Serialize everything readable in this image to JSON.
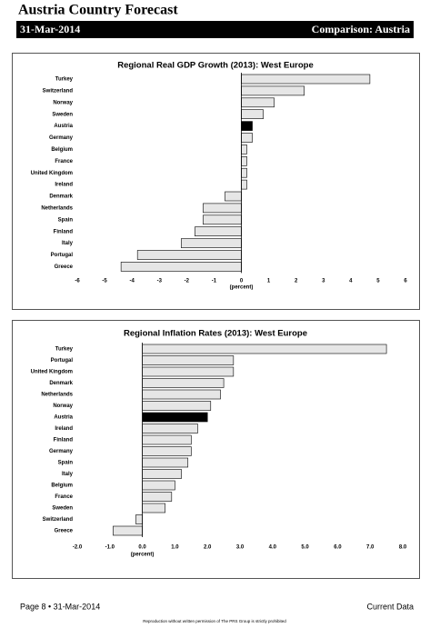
{
  "header": {
    "title": "Austria Country Forecast",
    "date": "31-Mar-2014",
    "comparison": "Comparison: Austria"
  },
  "chart_data": [
    {
      "type": "bar",
      "orientation": "horizontal",
      "title": "Regional Real GDP Growth (2013): West Europe",
      "categories": [
        "Turkey",
        "Switzerland",
        "Norway",
        "Sweden",
        "Austria",
        "Germany",
        "Belgium",
        "France",
        "United Kingdom",
        "Ireland",
        "Denmark",
        "Netherlands",
        "Spain",
        "Finland",
        "Italy",
        "Portugal",
        "Greece"
      ],
      "values": [
        4.7,
        2.3,
        1.2,
        0.8,
        0.4,
        0.4,
        0.2,
        0.2,
        0.2,
        0.2,
        -0.6,
        -1.4,
        -1.4,
        -1.7,
        -2.2,
        -3.8,
        -4.4
      ],
      "colors": [
        "#e6e6e6",
        "#e6e6e6",
        "#e6e6e6",
        "#e6e6e6",
        "#000000",
        "#e6e6e6",
        "#e6e6e6",
        "#e6e6e6",
        "#e6e6e6",
        "#e6e6e6",
        "#e6e6e6",
        "#e6e6e6",
        "#e6e6e6",
        "#e6e6e6",
        "#e6e6e6",
        "#e6e6e6",
        "#e6e6e6"
      ],
      "xlim": [
        -6,
        6
      ],
      "xticks": [
        -6,
        -5,
        -4,
        -3,
        -2,
        -1,
        0,
        1,
        2,
        3,
        4,
        5,
        6
      ],
      "xlabel": "(percent)"
    },
    {
      "type": "bar",
      "orientation": "horizontal",
      "title": "Regional Inflation Rates (2013): West Europe",
      "categories": [
        "Turkey",
        "Portugal",
        "United Kingdom",
        "Denmark",
        "Netherlands",
        "Norway",
        "Austria",
        "Ireland",
        "Finland",
        "Germany",
        "Spain",
        "Italy",
        "Belgium",
        "France",
        "Sweden",
        "Switzerland",
        "Greece"
      ],
      "values": [
        7.5,
        2.8,
        2.8,
        2.5,
        2.4,
        2.1,
        2.0,
        1.7,
        1.5,
        1.5,
        1.4,
        1.2,
        1.0,
        0.9,
        0.7,
        -0.2,
        -0.9
      ],
      "colors": [
        "#e6e6e6",
        "#e6e6e6",
        "#e6e6e6",
        "#e6e6e6",
        "#e6e6e6",
        "#e6e6e6",
        "#000000",
        "#e6e6e6",
        "#e6e6e6",
        "#e6e6e6",
        "#e6e6e6",
        "#e6e6e6",
        "#e6e6e6",
        "#e6e6e6",
        "#e6e6e6",
        "#e6e6e6",
        "#e6e6e6"
      ],
      "xlim": [
        -2,
        8
      ],
      "xticks": [
        {
          "value": -2,
          "label": "-2.0"
        },
        {
          "value": -1,
          "label": "-1.0"
        },
        {
          "value": 0,
          "label": "0.0"
        },
        {
          "value": 1,
          "label": "1.0"
        },
        {
          "value": 2,
          "label": "2.0"
        },
        {
          "value": 3,
          "label": "3.0"
        },
        {
          "value": 4,
          "label": "4.0"
        },
        {
          "value": 5,
          "label": "5.0"
        },
        {
          "value": 6,
          "label": "6.0"
        },
        {
          "value": 7,
          "label": "7.0"
        },
        {
          "value": 8,
          "label": "8.0"
        }
      ],
      "xlabel": "(percent)"
    }
  ],
  "footer": {
    "page": "Page 8 • 31-Mar-2014",
    "status": "Current Data",
    "notice": "Reproduction without written permission of The PRS Group is strictly prohibited"
  }
}
